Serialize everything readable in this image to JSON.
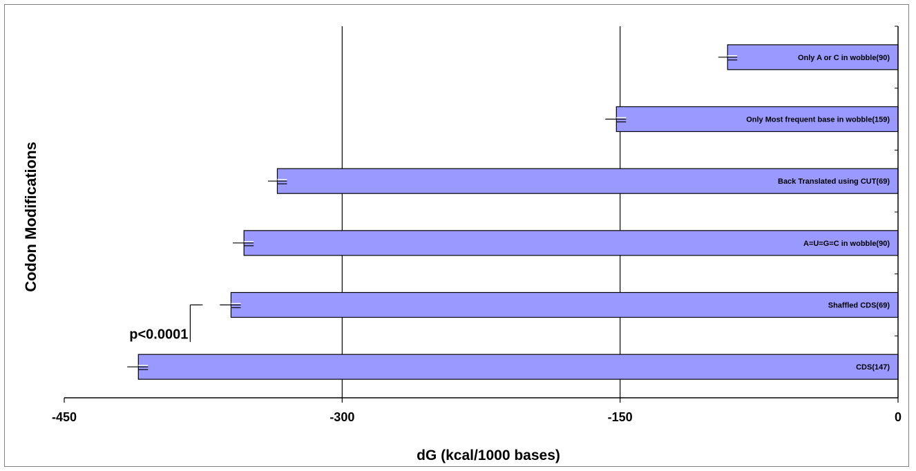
{
  "chart_data": {
    "type": "bar",
    "orientation": "horizontal",
    "ylabel": "Codon Modifications",
    "xlabel": "dG (kcal/1000 bases)",
    "xlim": [
      -450,
      0
    ],
    "xticks": [
      -450,
      -300,
      -150,
      0
    ],
    "xtick_labels": [
      "-450",
      "-300",
      "-150",
      "0"
    ],
    "grid_x": true,
    "categories": [
      "Only A or C in wobble(90)",
      "Only Most frequent base in wobble(159)",
      "Back Translated using CUT(69)",
      "A=U=G=C in wobble(90)",
      "Shaffled CDS(69)",
      "CDS(147)"
    ],
    "values": [
      -92,
      -152,
      -335,
      -353,
      -360,
      -410
    ],
    "errors": [
      5,
      6,
      5,
      6,
      6,
      6
    ],
    "bar_color": "#9999ff",
    "annotations": [
      {
        "text": "p<0.0001",
        "between": [
          "Shaffled CDS(69)",
          "CDS(147)"
        ]
      }
    ]
  }
}
